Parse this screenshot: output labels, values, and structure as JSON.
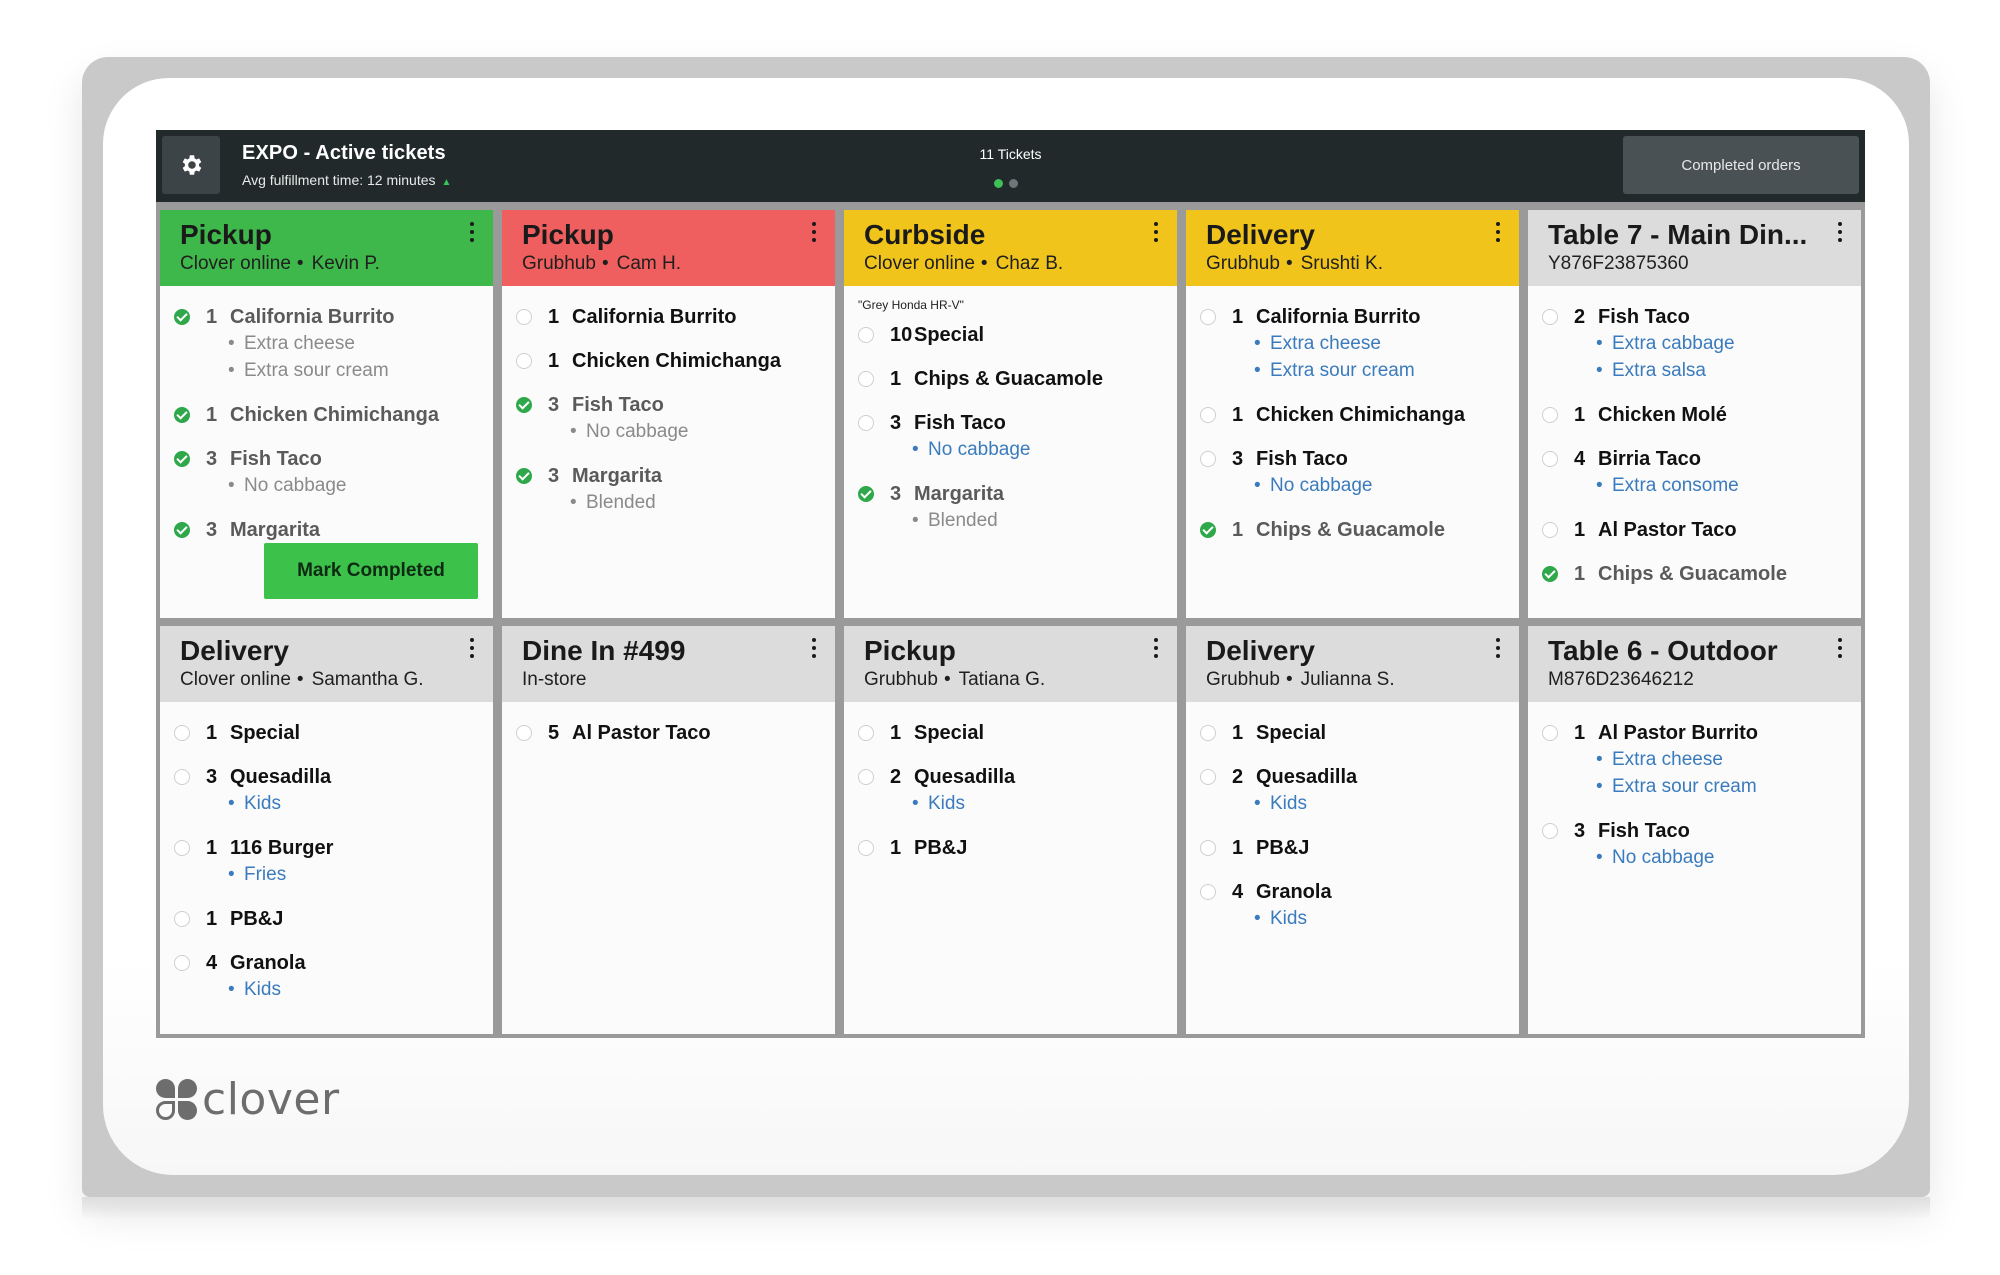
{
  "app": {
    "title": "EXPO - Active tickets",
    "avg_fulfillment": "Avg fulfillment time: 12 minutes",
    "tickets_count": "11 Tickets",
    "completed_orders_label": "Completed orders",
    "pager": {
      "pages": 2,
      "active": 1
    },
    "mark_completed_label": "Mark Completed"
  },
  "brand": {
    "logo_text": "clover",
    "green": "#3fb84b",
    "red": "#f05f5f",
    "yellow": "#f1c41b",
    "gray": "#dcdcdc"
  },
  "tickets": [
    {
      "title": "Pickup",
      "source": "Clover online",
      "customer": "Kevin P.",
      "status": "green",
      "items": [
        {
          "qty": "1",
          "name": "California Burrito",
          "done": true,
          "mods": [
            "Extra cheese",
            "Extra sour cream"
          ]
        },
        {
          "qty": "1",
          "name": "Chicken Chimichanga",
          "done": true,
          "mods": []
        },
        {
          "qty": "3",
          "name": "Fish Taco",
          "done": true,
          "mods": [
            "No cabbage"
          ]
        },
        {
          "qty": "3",
          "name": "Margarita",
          "done": true,
          "mods": []
        }
      ]
    },
    {
      "title": "Pickup",
      "source": "Grubhub",
      "customer": "Cam H.",
      "status": "red",
      "items": [
        {
          "qty": "1",
          "name": "California Burrito",
          "done": false,
          "mods": []
        },
        {
          "qty": "1",
          "name": "Chicken Chimichanga",
          "done": false,
          "mods": []
        },
        {
          "qty": "3",
          "name": "Fish Taco",
          "done": true,
          "mods": [
            "No cabbage"
          ]
        },
        {
          "qty": "3",
          "name": "Margarita",
          "done": true,
          "mods": [
            "Blended"
          ]
        }
      ]
    },
    {
      "title": "Curbside",
      "source": "Clover online",
      "customer": "Chaz B.",
      "status": "yellow",
      "note": "\"Grey Honda HR-V\"",
      "items": [
        {
          "qty": "10",
          "name": "Special",
          "done": false,
          "mods": []
        },
        {
          "qty": "1",
          "name": "Chips & Guacamole",
          "done": false,
          "mods": []
        },
        {
          "qty": "3",
          "name": "Fish Taco",
          "done": false,
          "mods": [
            "No cabbage"
          ]
        },
        {
          "qty": "3",
          "name": "Margarita",
          "done": true,
          "mods": [
            "Blended"
          ]
        }
      ]
    },
    {
      "title": "Delivery",
      "source": "Grubhub",
      "customer": "Srushti K.",
      "status": "yellow",
      "items": [
        {
          "qty": "1",
          "name": "California Burrito",
          "done": false,
          "mods": [
            "Extra cheese",
            "Extra sour cream"
          ]
        },
        {
          "qty": "1",
          "name": "Chicken Chimichanga",
          "done": false,
          "mods": []
        },
        {
          "qty": "3",
          "name": "Fish Taco",
          "done": false,
          "mods": [
            "No cabbage"
          ]
        },
        {
          "qty": "1",
          "name": "Chips & Guacamole",
          "done": true,
          "mods": []
        }
      ]
    },
    {
      "title": "Table 7 - Main Din...",
      "subtitle": "Y876F23875360",
      "status": "gray",
      "items": [
        {
          "qty": "2",
          "name": "Fish Taco",
          "done": false,
          "mods": [
            "Extra cabbage",
            "Extra salsa"
          ]
        },
        {
          "qty": "1",
          "name": "Chicken Molé",
          "done": false,
          "mods": []
        },
        {
          "qty": "4",
          "name": "Birria Taco",
          "done": false,
          "mods": [
            "Extra consome"
          ]
        },
        {
          "qty": "1",
          "name": "Al Pastor Taco",
          "done": false,
          "mods": []
        },
        {
          "qty": "1",
          "name": "Chips & Guacamole",
          "done": true,
          "mods": []
        }
      ]
    },
    {
      "title": "Delivery",
      "source": "Clover online",
      "customer": "Samantha G.",
      "status": "gray",
      "items": [
        {
          "qty": "1",
          "name": "Special",
          "done": false,
          "mods": []
        },
        {
          "qty": "3",
          "name": "Quesadilla",
          "done": false,
          "mods": [
            "Kids"
          ]
        },
        {
          "qty": "1",
          "name": "116 Burger",
          "done": false,
          "mods": [
            "Fries"
          ]
        },
        {
          "qty": "1",
          "name": "PB&J",
          "done": false,
          "mods": []
        },
        {
          "qty": "4",
          "name": "Granola",
          "done": false,
          "mods": [
            "Kids"
          ]
        }
      ]
    },
    {
      "title": "Dine In #499",
      "subtitle": "In-store",
      "status": "gray",
      "items": [
        {
          "qty": "5",
          "name": "Al Pastor Taco",
          "done": false,
          "mods": []
        }
      ]
    },
    {
      "title": "Pickup",
      "source": "Grubhub",
      "customer": "Tatiana G.",
      "status": "gray",
      "items": [
        {
          "qty": "1",
          "name": "Special",
          "done": false,
          "mods": []
        },
        {
          "qty": "2",
          "name": "Quesadilla",
          "done": false,
          "mods": [
            "Kids"
          ]
        },
        {
          "qty": "1",
          "name": "PB&J",
          "done": false,
          "mods": []
        }
      ]
    },
    {
      "title": "Delivery",
      "source": "Grubhub",
      "customer": "Julianna S.",
      "status": "gray",
      "items": [
        {
          "qty": "1",
          "name": "Special",
          "done": false,
          "mods": []
        },
        {
          "qty": "2",
          "name": "Quesadilla",
          "done": false,
          "mods": [
            "Kids"
          ]
        },
        {
          "qty": "1",
          "name": "PB&J",
          "done": false,
          "mods": []
        },
        {
          "qty": "4",
          "name": "Granola",
          "done": false,
          "mods": [
            "Kids"
          ]
        }
      ]
    },
    {
      "title": "Table 6 - Outdoor",
      "subtitle": "M876D23646212",
      "status": "gray",
      "items": [
        {
          "qty": "1",
          "name": "Al Pastor Burrito",
          "done": false,
          "mods": [
            "Extra cheese",
            "Extra sour cream"
          ]
        },
        {
          "qty": "3",
          "name": "Fish Taco",
          "done": false,
          "mods": [
            "No cabbage"
          ]
        }
      ]
    }
  ]
}
